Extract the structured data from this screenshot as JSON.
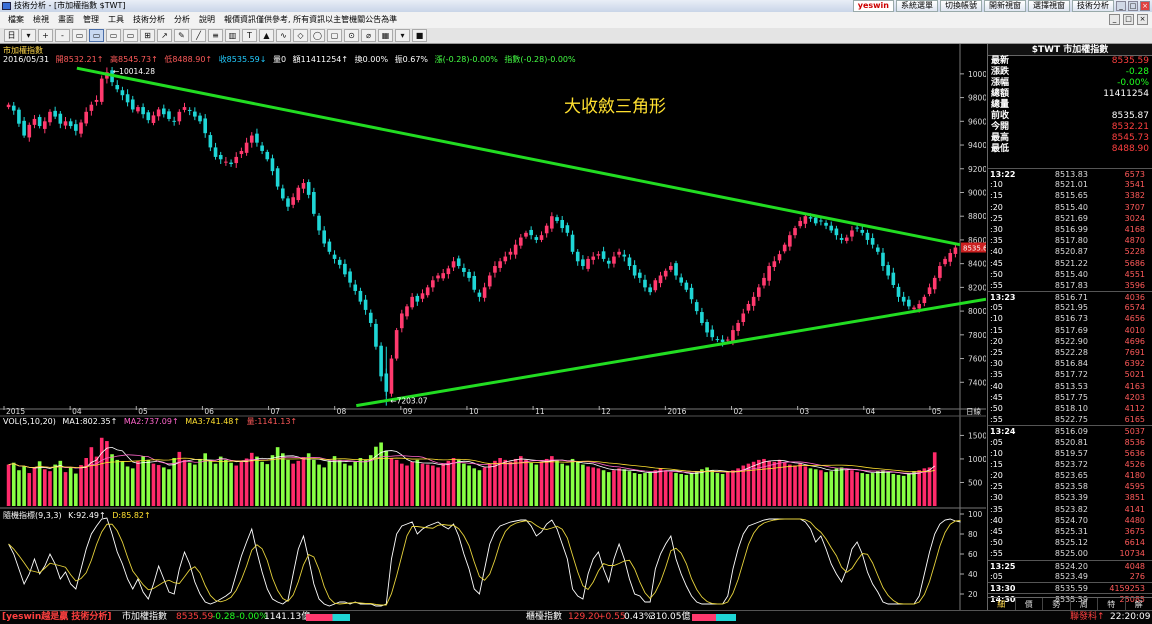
{
  "window": {
    "title": "技術分析 - [市加權指數 $TWT]",
    "buttons": [
      "yeswin",
      "系統選單",
      "切換帳號",
      "開新視窗",
      "選擇視窗",
      "技術分析"
    ],
    "controls": [
      "_",
      "□",
      "×"
    ]
  },
  "menu": {
    "items": [
      "檔案",
      "檢視",
      "畫面",
      "管理",
      "工具",
      "技術分析",
      "分析",
      "說明",
      "報價資訊僅供參考, 所有資訊以主管機關公告為準"
    ]
  },
  "toolbar": {
    "buttons": [
      "日",
      "▾",
      "+",
      "-",
      "▭",
      "▭",
      "▭",
      "▭",
      "⊞",
      "↗",
      "✎",
      "╱",
      "≡",
      "▥",
      "T",
      "▲",
      "∿",
      "◇",
      "◯",
      "▢",
      "⊙",
      "⌀",
      "▦",
      "▾",
      "■"
    ]
  },
  "colors": {
    "up": "#ff3a6e",
    "down": "#1fd6d6",
    "trend": "#22dd22",
    "vol_up": "#ff2a6a",
    "vol_down": "#88ff44",
    "k_line": "#ffffff",
    "d_line": "#e6d23c",
    "annotation": "#ffe030"
  },
  "price_panel": {
    "label": "市加權指數",
    "info": {
      "date": "2016/05/31",
      "open": "開8532.21↑",
      "high": "高8545.73↑",
      "low": "低8488.90↑",
      "close": "收8535.59↓",
      "qty": "量0",
      "amount": "額11411254↑",
      "turnover": "換0.00%",
      "amplitude": "振0.67%",
      "change": "漲(-0.28)-0.00%",
      "index_change": "指數(-0.28)-0.00%"
    },
    "annotation": "大收斂三角形",
    "high_label": "10014.28",
    "low_label": "7203.07",
    "last_price_tag": "8535.6",
    "period": "日線"
  },
  "volume_panel": {
    "label": "VOL(5,10,20)",
    "ma1": "MA1:802.35↑",
    "ma2": "MA2:737.09↑",
    "ma3": "MA3:741.48↑",
    "total": "量:1141.13↑"
  },
  "kd_panel": {
    "label": "隨機指標(9,3,3)",
    "k": "K:92.49↑",
    "d": "D:85.82↑"
  },
  "chart_data": {
    "type": "candlestick",
    "x_labels": [
      "2015",
      "04",
      "05",
      "06",
      "07",
      "08",
      "09",
      "10",
      "11",
      "12",
      "2016",
      "02",
      "03",
      "04",
      "05"
    ],
    "price_yticks": [
      7400,
      7600,
      7800,
      8000,
      8200,
      8400,
      8600,
      8800,
      9000,
      9200,
      9400,
      9600,
      9800,
      10000
    ],
    "price_ylim": [
      7200,
      10100
    ],
    "volume_yticks": [
      500,
      1000,
      1500
    ],
    "volume_ylim": [
      0,
      1700
    ],
    "kd_yticks": [
      20,
      40,
      60,
      80,
      100
    ],
    "kd_ylim": [
      10,
      100
    ],
    "closes": [
      9740,
      9690,
      9580,
      9480,
      9570,
      9620,
      9560,
      9600,
      9680,
      9640,
      9580,
      9600,
      9560,
      9520,
      9590,
      9680,
      9740,
      9780,
      9960,
      10014,
      9930,
      9870,
      9820,
      9760,
      9700,
      9720,
      9660,
      9610,
      9650,
      9700,
      9660,
      9620,
      9600,
      9680,
      9720,
      9690,
      9640,
      9600,
      9500,
      9380,
      9300,
      9280,
      9260,
      9240,
      9300,
      9350,
      9420,
      9480,
      9420,
      9350,
      9280,
      9180,
      9050,
      8950,
      8880,
      8960,
      9040,
      9080,
      8980,
      8820,
      8680,
      8570,
      8500,
      8440,
      8390,
      8310,
      8240,
      8170,
      8080,
      8010,
      7900,
      7700,
      7450,
      7320,
      7600,
      7840,
      7980,
      8040,
      8120,
      8080,
      8150,
      8200,
      8260,
      8300,
      8320,
      8360,
      8420,
      8380,
      8330,
      8280,
      8180,
      8120,
      8200,
      8300,
      8380,
      8420,
      8460,
      8500,
      8560,
      8620,
      8660,
      8640,
      8600,
      8640,
      8720,
      8800,
      8760,
      8700,
      8660,
      8500,
      8420,
      8380,
      8440,
      8460,
      8480,
      8440,
      8400,
      8460,
      8500,
      8460,
      8380,
      8300,
      8280,
      8200,
      8160,
      8260,
      8300,
      8340,
      8380,
      8300,
      8240,
      8180,
      8100,
      8000,
      7900,
      7820,
      7780,
      7760,
      7740,
      7760,
      7840,
      7900,
      7980,
      8060,
      8120,
      8200,
      8280,
      8380,
      8420,
      8480,
      8560,
      8640,
      8700,
      8760,
      8800,
      8780,
      8740,
      8760,
      8720,
      8680,
      8640,
      8600,
      8620,
      8680,
      8700,
      8660,
      8600,
      8560,
      8500,
      8380,
      8300,
      8220,
      8120,
      8080,
      8040,
      8030,
      8060,
      8120,
      8200,
      8280,
      8380,
      8440,
      8490,
      8536
    ],
    "volumes": [
      880,
      920,
      760,
      840,
      700,
      820,
      950,
      780,
      740,
      880,
      960,
      720,
      810,
      690,
      870,
      1020,
      1250,
      1050,
      1450,
      1380,
      1100,
      980,
      950,
      840,
      800,
      960,
      1060,
      980,
      900,
      870,
      820,
      780,
      1020,
      1150,
      980,
      920,
      880,
      1000,
      1120,
      960,
      900,
      1050,
      980,
      920,
      860,
      940,
      1010,
      1130,
      1050,
      940,
      890,
      1080,
      1250,
      1120,
      980,
      900,
      960,
      1040,
      1120,
      980,
      880,
      820,
      960,
      1060,
      980,
      900,
      860,
      940,
      1020,
      980,
      1080,
      1260,
      1350,
      1180,
      1020,
      980,
      900,
      860,
      940,
      980,
      900,
      880,
      860,
      820,
      900,
      960,
      1020,
      980,
      900,
      860,
      800,
      760,
      820,
      900,
      960,
      1020,
      980,
      940,
      1000,
      1060,
      980,
      920,
      880,
      940,
      1000,
      1060,
      980,
      900,
      860,
      1000,
      940,
      880,
      840,
      820,
      800,
      760,
      720,
      760,
      800,
      780,
      740,
      700,
      680,
      700,
      720,
      760,
      800,
      760,
      720,
      700,
      680,
      660,
      700,
      740,
      780,
      820,
      760,
      700,
      680,
      720,
      760,
      800,
      860,
      900,
      940,
      980,
      1000,
      960,
      940,
      980,
      920,
      880,
      860,
      900,
      840,
      800,
      780,
      760,
      720,
      740,
      800,
      820,
      780,
      760,
      720,
      700,
      680,
      700,
      740,
      760,
      720,
      680,
      660,
      640,
      700,
      740,
      760,
      800,
      820,
      1141
    ],
    "k_values": [
      70,
      60,
      45,
      30,
      40,
      55,
      40,
      48,
      60,
      50,
      35,
      42,
      30,
      25,
      45,
      65,
      80,
      88,
      95,
      96,
      80,
      62,
      50,
      35,
      25,
      35,
      22,
      15,
      30,
      48,
      35,
      22,
      20,
      45,
      62,
      50,
      32,
      20,
      12,
      10,
      12,
      15,
      18,
      22,
      40,
      58,
      72,
      85,
      62,
      42,
      25,
      15,
      12,
      10,
      14,
      40,
      65,
      78,
      55,
      30,
      15,
      10,
      8,
      10,
      12,
      12,
      10,
      12,
      10,
      10,
      10,
      8,
      8,
      10,
      55,
      80,
      88,
      90,
      92,
      80,
      85,
      88,
      90,
      92,
      88,
      85,
      90,
      78,
      60,
      45,
      25,
      20,
      45,
      70,
      82,
      88,
      90,
      92,
      93,
      94,
      94,
      88,
      78,
      82,
      90,
      94,
      85,
      70,
      55,
      25,
      18,
      15,
      40,
      55,
      62,
      45,
      32,
      55,
      70,
      55,
      35,
      20,
      18,
      12,
      12,
      45,
      60,
      70,
      78,
      55,
      40,
      28,
      18,
      12,
      10,
      10,
      10,
      10,
      10,
      18,
      45,
      65,
      80,
      88,
      90,
      92,
      94,
      95,
      95,
      95,
      95,
      95,
      95,
      95,
      92,
      85,
      72,
      78,
      65,
      50,
      40,
      32,
      45,
      65,
      72,
      60,
      42,
      30,
      22,
      12,
      10,
      10,
      10,
      10,
      10,
      10,
      18,
      40,
      62,
      80,
      90,
      94,
      95,
      93,
      92
    ]
  },
  "quote": {
    "header": "$TWT 市加權指數",
    "rows": [
      {
        "label": "最新",
        "value": "8535.59",
        "color": "#ff4040"
      },
      {
        "label": "漲跌",
        "value": "-0.28",
        "color": "#20ff20"
      },
      {
        "label": "漲幅",
        "value": "-0.00%",
        "color": "#20ff20"
      },
      {
        "label": "總額",
        "value": "11411254",
        "color": "#ffffff"
      },
      {
        "label": "總量",
        "value": "",
        "color": "#ffffff"
      },
      {
        "label": "前收",
        "value": "8535.87",
        "color": "#ffffff"
      },
      {
        "label": "今開",
        "value": "8532.21",
        "color": "#ff4040"
      },
      {
        "label": "最高",
        "value": "8545.73",
        "color": "#ff4040"
      },
      {
        "label": "最低",
        "value": "8488.90",
        "color": "#ff4040"
      }
    ]
  },
  "ticks": [
    {
      "time": "13:22",
      "price": "8513.83",
      "vol": "6573",
      "major": true
    },
    {
      "time": ":10",
      "price": "8521.01",
      "vol": "3541"
    },
    {
      "time": ":15",
      "price": "8515.65",
      "vol": "3382"
    },
    {
      "time": ":20",
      "price": "8515.40",
      "vol": "3707"
    },
    {
      "time": ":25",
      "price": "8521.69",
      "vol": "3024"
    },
    {
      "time": ":30",
      "price": "8516.99",
      "vol": "4168"
    },
    {
      "time": ":35",
      "price": "8517.80",
      "vol": "4870"
    },
    {
      "time": ":40",
      "price": "8520.87",
      "vol": "5228"
    },
    {
      "time": ":45",
      "price": "8521.22",
      "vol": "5686"
    },
    {
      "time": ":50",
      "price": "8515.40",
      "vol": "4551"
    },
    {
      "time": ":55",
      "price": "8517.83",
      "vol": "3596"
    },
    {
      "time": "13:23",
      "price": "8516.71",
      "vol": "4036",
      "major": true
    },
    {
      "time": ":05",
      "price": "8521.95",
      "vol": "6574"
    },
    {
      "time": ":10",
      "price": "8516.73",
      "vol": "4656"
    },
    {
      "time": ":15",
      "price": "8517.69",
      "vol": "4010"
    },
    {
      "time": ":20",
      "price": "8522.90",
      "vol": "4696"
    },
    {
      "time": ":25",
      "price": "8522.28",
      "vol": "7691"
    },
    {
      "time": ":30",
      "price": "8516.84",
      "vol": "6392"
    },
    {
      "time": ":35",
      "price": "8517.72",
      "vol": "5021"
    },
    {
      "time": ":40",
      "price": "8513.53",
      "vol": "4163"
    },
    {
      "time": ":45",
      "price": "8517.75",
      "vol": "4203"
    },
    {
      "time": ":50",
      "price": "8518.10",
      "vol": "4112"
    },
    {
      "time": ":55",
      "price": "8522.75",
      "vol": "6165"
    },
    {
      "time": "13:24",
      "price": "8516.09",
      "vol": "5037",
      "major": true
    },
    {
      "time": ":05",
      "price": "8520.81",
      "vol": "8536"
    },
    {
      "time": ":10",
      "price": "8519.57",
      "vol": "5636"
    },
    {
      "time": ":15",
      "price": "8523.72",
      "vol": "4526"
    },
    {
      "time": ":20",
      "price": "8523.65",
      "vol": "4180"
    },
    {
      "time": ":25",
      "price": "8523.58",
      "vol": "4595"
    },
    {
      "time": ":30",
      "price": "8523.39",
      "vol": "3851"
    },
    {
      "time": ":35",
      "price": "8523.82",
      "vol": "4141"
    },
    {
      "time": ":40",
      "price": "8524.70",
      "vol": "4480"
    },
    {
      "time": ":45",
      "price": "8525.31",
      "vol": "3675"
    },
    {
      "time": ":50",
      "price": "8525.12",
      "vol": "6614"
    },
    {
      "time": ":55",
      "price": "8525.00",
      "vol": "10734"
    },
    {
      "time": "13:25",
      "price": "8524.20",
      "vol": "4048",
      "major": true
    },
    {
      "time": ":05",
      "price": "8523.49",
      "vol": "276"
    },
    {
      "time": "13:30",
      "price": "8535.59",
      "vol": "4159253",
      "major": true
    },
    {
      "time": "14:30",
      "price": "8535.59",
      "vol": "25085",
      "major": true
    }
  ],
  "right_tabs": [
    "細",
    "價",
    "勢",
    "周",
    "特",
    "解"
  ],
  "statusbar": {
    "brand": "[yeswin越是贏 技術分析]",
    "index1_name": "市加權指數",
    "index1_price": "8535.59",
    "index1_change": "-0.28",
    "index1_pct": "-0.00%",
    "index1_amount": "1141.13億",
    "index2_name": "櫃檯指數",
    "index2_price": "129.20",
    "index2_change": "+0.55",
    "index2_pct": "0.43%",
    "index2_amount": "310.05億",
    "message": "聯發科↑",
    "clock": "22:20:09"
  }
}
